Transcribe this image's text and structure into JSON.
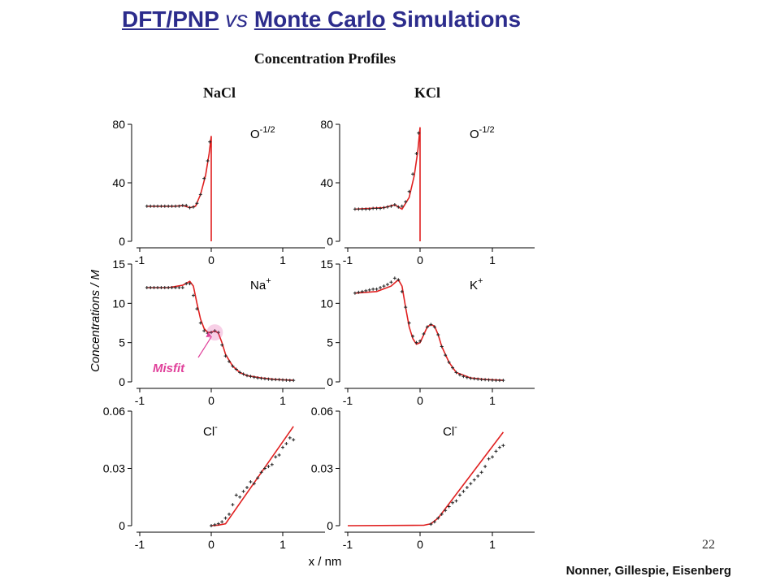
{
  "slide": {
    "title_part1": "DFT/PNP",
    "title_vs": "vs",
    "title_part2": "Monte Carlo",
    "title_part3": "Simulations",
    "subtitle": "Concentration Profiles",
    "col_left": "NaCl",
    "col_right": "KCl",
    "page_number": "22",
    "credit": "Nonner, Gillespie, Eisenberg",
    "y_axis_label": "Concentrations / M",
    "x_axis_label": "x / nm",
    "annotation": "Misfit"
  },
  "colors": {
    "title": "#2c2c8c",
    "theory_line": "#e02020",
    "simulation_marker": "#222222",
    "annotation": "#e0409a"
  },
  "chart_data": [
    {
      "type": "line",
      "panel": "NaCl O",
      "label": "O",
      "label_sup": "-1/2",
      "xlim": [
        -1,
        1
      ],
      "ylim": [
        0,
        80
      ],
      "yticks": [
        0,
        40,
        80
      ],
      "xticks": [
        -1,
        0,
        1
      ],
      "series": [
        {
          "role": "theory",
          "x": [
            -0.9,
            -0.5,
            -0.4,
            -0.3,
            -0.22,
            -0.15,
            -0.08,
            -0.03,
            0.0,
            0.0
          ],
          "y": [
            24,
            24,
            24.5,
            23,
            24,
            32,
            45,
            60,
            72,
            0
          ]
        },
        {
          "role": "simulation",
          "x": [
            -0.9,
            -0.85,
            -0.8,
            -0.75,
            -0.7,
            -0.65,
            -0.6,
            -0.55,
            -0.5,
            -0.45,
            -0.4,
            -0.35,
            -0.3,
            -0.25,
            -0.2,
            -0.15,
            -0.1,
            -0.05,
            -0.02
          ],
          "y": [
            24,
            24,
            24,
            24,
            24,
            24,
            24,
            24,
            24,
            24,
            24.5,
            24.5,
            23,
            23.5,
            26,
            32,
            43,
            55,
            68
          ]
        }
      ]
    },
    {
      "type": "line",
      "panel": "KCl O",
      "label": "O",
      "label_sup": "-1/2",
      "xlim": [
        -1,
        1
      ],
      "ylim": [
        0,
        80
      ],
      "yticks": [
        0,
        40,
        80
      ],
      "xticks": [
        -1,
        0,
        1
      ],
      "series": [
        {
          "role": "theory",
          "x": [
            -0.9,
            -0.5,
            -0.35,
            -0.25,
            -0.15,
            -0.08,
            -0.03,
            0.0,
            0.0
          ],
          "y": [
            22,
            23,
            25,
            22,
            30,
            45,
            62,
            78,
            0
          ]
        },
        {
          "role": "simulation",
          "x": [
            -0.9,
            -0.85,
            -0.8,
            -0.75,
            -0.7,
            -0.65,
            -0.6,
            -0.55,
            -0.5,
            -0.45,
            -0.4,
            -0.35,
            -0.3,
            -0.25,
            -0.2,
            -0.15,
            -0.1,
            -0.05,
            -0.02
          ],
          "y": [
            22,
            22,
            22,
            22,
            22,
            22.5,
            22.5,
            22.5,
            23,
            23.5,
            24,
            25,
            23.5,
            24,
            27,
            34,
            46,
            60,
            74
          ]
        }
      ]
    },
    {
      "type": "line",
      "panel": "NaCl Na",
      "label": "Na",
      "label_sup": "+",
      "xlim": [
        -1,
        1
      ],
      "ylim": [
        0,
        15
      ],
      "yticks": [
        0,
        5,
        10,
        15
      ],
      "xticks": [
        -1,
        0,
        1
      ],
      "series": [
        {
          "role": "theory",
          "x": [
            -0.9,
            -0.6,
            -0.4,
            -0.3,
            -0.25,
            -0.2,
            -0.15,
            -0.1,
            -0.05,
            0.0,
            0.05,
            0.1,
            0.15,
            0.2,
            0.3,
            0.4,
            0.5,
            0.7,
            0.9,
            1.15
          ],
          "y": [
            12,
            12,
            12.3,
            12.8,
            12.2,
            10,
            8,
            6.8,
            6.3,
            6.3,
            6.5,
            6.2,
            5,
            3.5,
            2,
            1.2,
            0.8,
            0.5,
            0.3,
            0.2
          ]
        },
        {
          "role": "simulation",
          "x": [
            -0.9,
            -0.85,
            -0.8,
            -0.75,
            -0.7,
            -0.65,
            -0.6,
            -0.55,
            -0.5,
            -0.45,
            -0.4,
            -0.35,
            -0.3,
            -0.25,
            -0.2,
            -0.15,
            -0.1,
            -0.05,
            0.0,
            0.05,
            0.1,
            0.15,
            0.2,
            0.25,
            0.3,
            0.35,
            0.4,
            0.45,
            0.5,
            0.55,
            0.6,
            0.65,
            0.7,
            0.75,
            0.8,
            0.85,
            0.9,
            0.95,
            1.0,
            1.05,
            1.1,
            1.15
          ],
          "y": [
            12,
            12,
            12,
            12,
            12,
            12,
            12,
            12,
            12,
            12,
            12,
            12.5,
            12.5,
            11,
            9.3,
            7.5,
            6.5,
            6.2,
            6.3,
            6.5,
            6.3,
            4.7,
            3.3,
            2.6,
            2,
            1.6,
            1.2,
            1,
            0.8,
            0.7,
            0.6,
            0.5,
            0.45,
            0.4,
            0.35,
            0.3,
            0.3,
            0.28,
            0.25,
            0.22,
            0.2,
            0.2
          ]
        }
      ]
    },
    {
      "type": "line",
      "panel": "KCl K",
      "label": "K",
      "label_sup": "+",
      "xlim": [
        -1,
        1
      ],
      "ylim": [
        0,
        15
      ],
      "yticks": [
        0,
        5,
        10,
        15
      ],
      "xticks": [
        -1,
        0,
        1
      ],
      "series": [
        {
          "role": "theory",
          "x": [
            -0.9,
            -0.6,
            -0.4,
            -0.3,
            -0.25,
            -0.2,
            -0.15,
            -0.1,
            -0.05,
            0.0,
            0.05,
            0.1,
            0.15,
            0.2,
            0.25,
            0.3,
            0.4,
            0.5,
            0.7,
            0.9,
            1.15
          ],
          "y": [
            11.3,
            11.5,
            12.2,
            13,
            12.2,
            9.5,
            7,
            5.5,
            4.8,
            5,
            6,
            7,
            7.3,
            7.1,
            6,
            4.5,
            2.5,
            1.2,
            0.5,
            0.3,
            0.2
          ]
        },
        {
          "role": "simulation",
          "x": [
            -0.9,
            -0.85,
            -0.8,
            -0.75,
            -0.7,
            -0.65,
            -0.6,
            -0.55,
            -0.5,
            -0.45,
            -0.4,
            -0.35,
            -0.3,
            -0.25,
            -0.2,
            -0.15,
            -0.1,
            -0.05,
            0.0,
            0.05,
            0.1,
            0.15,
            0.2,
            0.25,
            0.3,
            0.35,
            0.4,
            0.45,
            0.5,
            0.55,
            0.6,
            0.65,
            0.7,
            0.75,
            0.8,
            0.85,
            0.9,
            0.95,
            1.0,
            1.05,
            1.1,
            1.15
          ],
          "y": [
            11.3,
            11.4,
            11.5,
            11.6,
            11.7,
            11.8,
            11.8,
            12,
            12.2,
            12.4,
            12.7,
            13.2,
            13,
            11.5,
            9.5,
            7.5,
            5.8,
            5,
            5.2,
            6.1,
            7,
            7.3,
            7,
            6,
            4.5,
            3.4,
            2.5,
            1.8,
            1.2,
            0.9,
            0.7,
            0.55,
            0.45,
            0.4,
            0.35,
            0.3,
            0.28,
            0.25,
            0.22,
            0.2,
            0.2,
            0.2
          ]
        }
      ]
    },
    {
      "type": "line",
      "panel": "NaCl Cl",
      "label": "Cl",
      "label_sup": "-",
      "xlim": [
        -1,
        1
      ],
      "ylim": [
        0,
        0.06
      ],
      "yticks": [
        0,
        0.03,
        0.06
      ],
      "ytick_labels": [
        "0",
        "0.03",
        "0.06"
      ],
      "xticks": [
        -1,
        0,
        1
      ],
      "series": [
        {
          "role": "theory",
          "x": [
            0.0,
            0.1,
            0.2,
            1.15
          ],
          "y": [
            0,
            0.0003,
            0.001,
            0.052
          ]
        },
        {
          "role": "simulation",
          "x": [
            0.0,
            0.05,
            0.1,
            0.15,
            0.2,
            0.25,
            0.3,
            0.35,
            0.4,
            0.45,
            0.5,
            0.55,
            0.6,
            0.65,
            0.7,
            0.75,
            0.8,
            0.85,
            0.9,
            0.95,
            1.0,
            1.05,
            1.1,
            1.15
          ],
          "y": [
            0,
            0.0005,
            0.001,
            0.002,
            0.004,
            0.006,
            0.011,
            0.016,
            0.015,
            0.018,
            0.02,
            0.023,
            0.022,
            0.025,
            0.028,
            0.03,
            0.031,
            0.032,
            0.036,
            0.037,
            0.041,
            0.043,
            0.046,
            0.045
          ]
        }
      ]
    },
    {
      "type": "line",
      "panel": "KCl Cl",
      "label": "Cl",
      "label_sup": "-",
      "xlim": [
        -1,
        1
      ],
      "ylim": [
        0,
        0.06
      ],
      "yticks": [
        0,
        0.03,
        0.06
      ],
      "xticks": [
        -1,
        0,
        1
      ],
      "series": [
        {
          "role": "theory",
          "x": [
            -1.0,
            0.05,
            0.15,
            0.25,
            1.15
          ],
          "y": [
            0,
            0.0002,
            0.001,
            0.004,
            0.049
          ]
        },
        {
          "role": "simulation",
          "x": [
            0.15,
            0.2,
            0.25,
            0.3,
            0.35,
            0.4,
            0.45,
            0.5,
            0.55,
            0.6,
            0.65,
            0.7,
            0.75,
            0.8,
            0.85,
            0.9,
            0.95,
            1.0,
            1.05,
            1.1,
            1.15
          ],
          "y": [
            0.0008,
            0.002,
            0.004,
            0.006,
            0.008,
            0.01,
            0.012,
            0.013,
            0.016,
            0.018,
            0.02,
            0.022,
            0.024,
            0.026,
            0.028,
            0.031,
            0.035,
            0.036,
            0.039,
            0.041,
            0.042
          ]
        }
      ]
    }
  ]
}
